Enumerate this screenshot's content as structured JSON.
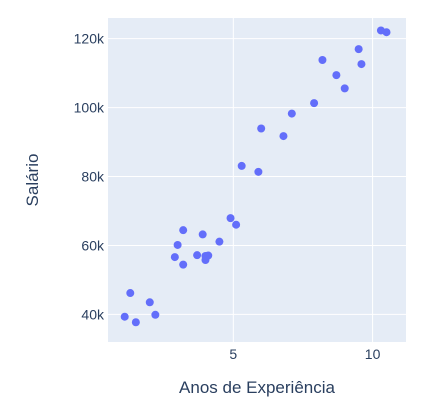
{
  "chart_data": {
    "type": "scatter",
    "xlabel": "Anos de Experiência",
    "ylabel": "Salário",
    "xlim": [
      0.5,
      11.2
    ],
    "ylim": [
      32000,
      126000
    ],
    "x_ticks": [
      5,
      10
    ],
    "x_tick_labels": [
      "5",
      "10"
    ],
    "y_ticks": [
      40000,
      60000,
      80000,
      100000,
      120000
    ],
    "y_tick_labels": [
      "40k",
      "60k",
      "80k",
      "100k",
      "120k"
    ],
    "grid": true,
    "colors": {
      "plot_bg": "#e5ecf6",
      "grid": "#ffffff",
      "marker": "#636efa",
      "text": "#2a3f5f"
    },
    "series": [
      {
        "points": [
          [
            1.1,
            39343
          ],
          [
            1.3,
            46205
          ],
          [
            1.5,
            37731
          ],
          [
            2.0,
            43525
          ],
          [
            2.2,
            39891
          ],
          [
            2.9,
            56642
          ],
          [
            3.0,
            60150
          ],
          [
            3.2,
            54445
          ],
          [
            3.2,
            64445
          ],
          [
            3.7,
            57189
          ],
          [
            3.9,
            63218
          ],
          [
            4.0,
            55794
          ],
          [
            4.0,
            56957
          ],
          [
            4.1,
            57081
          ],
          [
            4.5,
            61111
          ],
          [
            4.9,
            67938
          ],
          [
            5.1,
            66029
          ],
          [
            5.3,
            83088
          ],
          [
            5.9,
            81363
          ],
          [
            6.0,
            93940
          ],
          [
            6.8,
            91738
          ],
          [
            7.1,
            98273
          ],
          [
            7.9,
            101302
          ],
          [
            8.2,
            113812
          ],
          [
            8.7,
            109431
          ],
          [
            9.0,
            105582
          ],
          [
            9.5,
            116969
          ],
          [
            9.6,
            112635
          ],
          [
            10.3,
            122391
          ],
          [
            10.5,
            121872
          ]
        ]
      }
    ]
  }
}
